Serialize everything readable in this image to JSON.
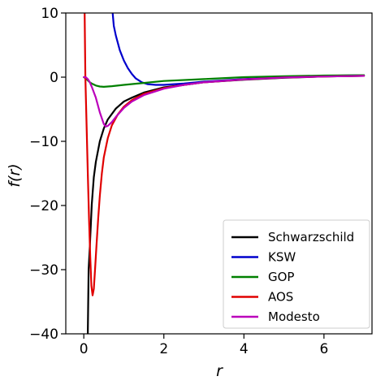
{
  "chart_data": {
    "type": "line",
    "title": "",
    "xlabel": "r",
    "ylabel": "f(r)",
    "xlim": [
      -0.45,
      7.2
    ],
    "ylim": [
      -40,
      10
    ],
    "xticks": [
      0,
      2,
      4,
      6
    ],
    "yticks": [
      10,
      0,
      -10,
      -20,
      -30,
      -40
    ],
    "xtick_labels": [
      "0",
      "2",
      "4",
      "6"
    ],
    "ytick_labels": [
      "10",
      "0",
      "−10",
      "−20",
      "−30",
      "−40"
    ],
    "grid": false,
    "legend_position": "lower-right",
    "series": [
      {
        "name": "Schwarzschild",
        "color": "#000000",
        "x": [
          0.1,
          0.12,
          0.15,
          0.2,
          0.25,
          0.3,
          0.4,
          0.5,
          0.6,
          0.8,
          1.0,
          1.2,
          1.5,
          2.0,
          2.5,
          3.0,
          4.0,
          5.0,
          6.0,
          7.0
        ],
        "y": [
          -40.0,
          -30.0,
          -26.4,
          -19.8,
          -15.6,
          -13.2,
          -10.0,
          -8.0,
          -6.6,
          -4.9,
          -3.8,
          -3.2,
          -2.4,
          -1.6,
          -1.2,
          -0.8,
          -0.4,
          -0.1,
          0.1,
          0.2
        ]
      },
      {
        "name": "KSW",
        "color": "#0000cc",
        "x": [
          0.72,
          0.75,
          0.8,
          0.9,
          1.0,
          1.1,
          1.2,
          1.3,
          1.45,
          1.6,
          1.8,
          2.0,
          2.5,
          3.0,
          4.0,
          5.0,
          6.0,
          7.0
        ],
        "y": [
          10.0,
          8.0,
          6.5,
          4.2,
          2.6,
          1.4,
          0.5,
          -0.2,
          -0.8,
          -1.1,
          -1.2,
          -1.2,
          -1.0,
          -0.7,
          -0.3,
          0.0,
          0.2,
          0.3
        ]
      },
      {
        "name": "GOP",
        "color": "#008000",
        "x": [
          0.0,
          0.05,
          0.1,
          0.15,
          0.2,
          0.3,
          0.4,
          0.5,
          0.7,
          1.0,
          1.5,
          2.0,
          3.0,
          4.0,
          5.0,
          6.0,
          7.0
        ],
        "y": [
          0.0,
          -0.2,
          -0.5,
          -0.8,
          -1.0,
          -1.3,
          -1.45,
          -1.5,
          -1.4,
          -1.2,
          -0.9,
          -0.6,
          -0.3,
          0.0,
          0.15,
          0.25,
          0.3
        ]
      },
      {
        "name": "AOS",
        "color": "#e00000",
        "x": [
          0.02,
          0.04,
          0.06,
          0.08,
          0.1,
          0.13,
          0.16,
          0.19,
          0.22,
          0.25,
          0.28,
          0.32,
          0.36,
          0.4,
          0.45,
          0.5,
          0.6,
          0.7,
          0.85,
          1.0,
          1.2,
          1.5,
          2.0,
          2.5,
          3.0,
          4.0,
          5.0,
          6.0,
          7.0
        ],
        "y": [
          10.0,
          0.0,
          -5.0,
          -10.0,
          -15.0,
          -22.0,
          -28.0,
          -32.5,
          -34.0,
          -33.0,
          -30.0,
          -26.0,
          -22.0,
          -18.5,
          -15.0,
          -12.5,
          -9.5,
          -7.5,
          -5.8,
          -4.6,
          -3.6,
          -2.6,
          -1.7,
          -1.2,
          -0.8,
          -0.35,
          -0.05,
          0.1,
          0.2
        ]
      },
      {
        "name": "Modesto",
        "color": "#bb00bb",
        "x": [
          0.0,
          0.05,
          0.1,
          0.15,
          0.2,
          0.3,
          0.4,
          0.5,
          0.55,
          0.6,
          0.7,
          0.8,
          1.0,
          1.2,
          1.5,
          2.0,
          2.5,
          3.0,
          4.0,
          5.0,
          6.0,
          7.0
        ],
        "y": [
          0.0,
          0.0,
          -0.3,
          -0.8,
          -1.5,
          -3.2,
          -5.5,
          -7.3,
          -7.7,
          -7.6,
          -7.0,
          -6.2,
          -4.8,
          -3.8,
          -2.8,
          -1.8,
          -1.2,
          -0.8,
          -0.35,
          -0.05,
          0.1,
          0.2
        ]
      }
    ]
  }
}
